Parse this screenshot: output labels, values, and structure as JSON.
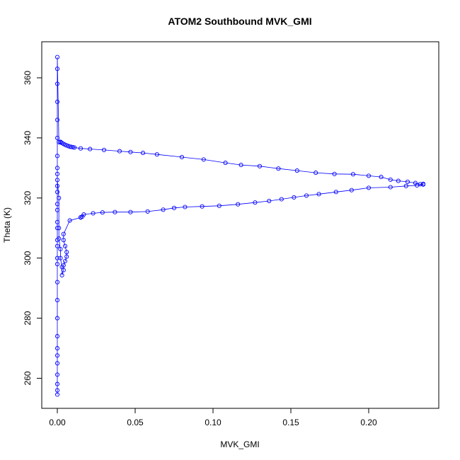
{
  "chart_data": {
    "type": "scatter",
    "title": "ATOM2 Southbound MVK_GMI",
    "xlabel": "MVK_GMI",
    "ylabel": "Theta (K)",
    "xlim": [
      -0.01,
      0.245
    ],
    "ylim": [
      250,
      372
    ],
    "x_ticks": [
      0.0,
      0.05,
      0.1,
      0.15,
      0.2
    ],
    "x_tick_labels": [
      "0.00",
      "0.05",
      "0.10",
      "0.15",
      "0.20"
    ],
    "y_ticks": [
      260,
      280,
      300,
      320,
      340,
      360
    ],
    "y_tick_labels": [
      "260",
      "280",
      "300",
      "320",
      "340",
      "360"
    ],
    "grid": false,
    "series": [
      {
        "color": "#0000ff",
        "marker": "open-circle",
        "connected": true,
        "x": [
          0.0,
          0.0,
          0.0,
          0.0,
          0.0,
          0.0,
          0.0,
          0.0,
          0.0,
          0.0,
          0.0,
          0.0,
          0.0,
          0.0,
          0.0,
          0.0,
          0.0,
          0.0,
          0.0,
          0.0,
          0.0,
          0.0,
          0.0,
          0.0,
          0.001,
          0.002,
          0.002,
          0.003,
          0.004,
          0.005,
          0.006,
          0.007,
          0.008,
          0.009,
          0.01,
          0.011,
          0.015,
          0.021,
          0.03,
          0.04,
          0.047,
          0.055,
          0.064,
          0.08,
          0.094,
          0.108,
          0.118,
          0.13,
          0.142,
          0.154,
          0.166,
          0.178,
          0.19,
          0.2,
          0.208,
          0.214,
          0.219,
          0.225,
          0.23,
          0.233,
          0.235,
          0.235,
          0.231,
          0.224,
          0.214,
          0.2,
          0.189,
          0.179,
          0.168,
          0.16,
          0.152,
          0.144,
          0.136,
          0.127,
          0.116,
          0.104,
          0.093,
          0.082,
          0.075,
          0.068,
          0.058,
          0.047,
          0.037,
          0.029,
          0.023,
          0.017,
          0.016,
          0.015,
          0.015,
          0.008,
          0.004,
          0.004,
          0.005,
          0.006,
          0.006,
          0.005,
          0.004,
          0.004,
          0.003,
          0.003,
          0.002,
          0.002,
          0.001,
          0.001,
          0.001,
          0.0,
          0.0,
          0.0,
          0.0,
          0.0,
          0.0,
          0.0
        ],
        "y": [
          254.6,
          256.0,
          258.1,
          261.2,
          265.0,
          267.6,
          270.0,
          274.0,
          280.0,
          286.0,
          292.0,
          298.0,
          304.0,
          310.0,
          316.0,
          322.0,
          328.0,
          334.0,
          340.0,
          346.0,
          352.0,
          358.0,
          363.0,
          366.9,
          338.6,
          338.7,
          338.5,
          338.3,
          338.0,
          337.7,
          337.5,
          337.3,
          337.1,
          337.0,
          336.9,
          336.8,
          336.5,
          336.3,
          336.0,
          335.6,
          335.3,
          335.0,
          334.5,
          333.6,
          332.8,
          331.7,
          331.0,
          330.6,
          329.8,
          329.1,
          328.4,
          328.0,
          327.9,
          327.4,
          327.0,
          326.1,
          325.7,
          325.4,
          325.0,
          324.6,
          324.7,
          324.5,
          324.2,
          324.0,
          323.6,
          323.4,
          322.6,
          322.0,
          321.3,
          320.8,
          320.2,
          319.6,
          319.0,
          318.5,
          317.9,
          317.4,
          317.2,
          317.0,
          316.7,
          316.1,
          315.5,
          315.3,
          315.3,
          315.2,
          314.9,
          314.5,
          313.8,
          313.6,
          313.5,
          312.5,
          308.0,
          306.0,
          304.0,
          302.0,
          300.5,
          299.0,
          297.6,
          296.0,
          294.3,
          297.0,
          300.0,
          303.0,
          306.5,
          310.0,
          320.0,
          326.0,
          330.0,
          324.0,
          318.0,
          312.0,
          306.0,
          300.0
        ]
      }
    ]
  }
}
